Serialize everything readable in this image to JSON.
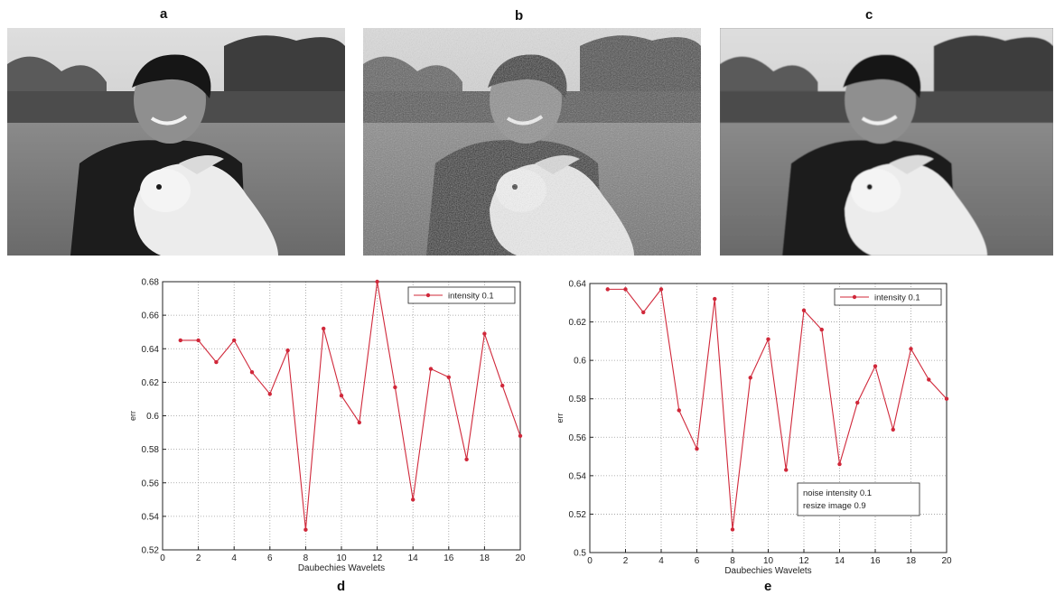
{
  "panels": {
    "a": "a",
    "b": "b",
    "c": "c",
    "d": "d",
    "e": "e"
  },
  "images": [
    {
      "panel": "a",
      "icon": "boy-holding-rabbit-photo",
      "variant": "original"
    },
    {
      "panel": "b",
      "icon": "boy-holding-rabbit-photo",
      "variant": "noisy"
    },
    {
      "panel": "c",
      "icon": "boy-holding-rabbit-photo",
      "variant": "denoised"
    }
  ],
  "chart_data": [
    {
      "type": "line",
      "panel": "d",
      "title": "",
      "xlabel": "Daubechies Wavelets",
      "ylabel": "err",
      "xlim": [
        0,
        20
      ],
      "ylim": [
        0.52,
        0.68
      ],
      "xticks": [
        0,
        2,
        4,
        6,
        8,
        10,
        12,
        14,
        16,
        18,
        20
      ],
      "yticks": [
        0.52,
        0.54,
        0.56,
        0.58,
        0.6,
        0.62,
        0.64,
        0.66,
        0.68
      ],
      "ytick_labels": [
        "0.52",
        "0.54",
        "0.56",
        "0.58",
        "0.6",
        "0.62",
        "0.64",
        "0.66",
        "0.68"
      ],
      "grid": true,
      "legend_position": "top-right",
      "color": "#d0283a",
      "x": [
        1,
        2,
        3,
        4,
        5,
        6,
        7,
        8,
        9,
        10,
        11,
        12,
        13,
        14,
        15,
        16,
        17,
        18,
        19,
        20
      ],
      "series": [
        {
          "name": "intensity 0.1",
          "values": [
            0.645,
            0.645,
            0.632,
            0.645,
            0.626,
            0.613,
            0.639,
            0.532,
            0.652,
            0.612,
            0.596,
            0.68,
            0.617,
            0.55,
            0.628,
            0.623,
            0.574,
            0.649,
            0.618,
            0.588
          ]
        }
      ],
      "annotations": []
    },
    {
      "type": "line",
      "panel": "e",
      "title": "",
      "xlabel": "Daubechies Wavelets",
      "ylabel": "err",
      "xlim": [
        0,
        20
      ],
      "ylim": [
        0.5,
        0.64
      ],
      "xticks": [
        0,
        2,
        4,
        6,
        8,
        10,
        12,
        14,
        16,
        18,
        20
      ],
      "yticks": [
        0.5,
        0.52,
        0.54,
        0.56,
        0.58,
        0.6,
        0.62,
        0.64
      ],
      "ytick_labels": [
        "0.5",
        "0.52",
        "0.54",
        "0.56",
        "0.58",
        "0.6",
        "0.62",
        "0.64"
      ],
      "grid": true,
      "legend_position": "top-right",
      "color": "#d0283a",
      "x": [
        1,
        2,
        3,
        4,
        5,
        6,
        7,
        8,
        9,
        10,
        11,
        12,
        13,
        14,
        15,
        16,
        17,
        18,
        19,
        20
      ],
      "series": [
        {
          "name": "intensity 0.1",
          "values": [
            0.637,
            0.637,
            0.625,
            0.637,
            0.574,
            0.554,
            0.632,
            0.512,
            0.591,
            0.611,
            0.543,
            0.626,
            0.616,
            0.546,
            0.578,
            0.597,
            0.564,
            0.606,
            0.59,
            0.58
          ]
        }
      ],
      "annotations": [
        "noise intensity 0.1",
        "resize image 0.9"
      ]
    }
  ]
}
